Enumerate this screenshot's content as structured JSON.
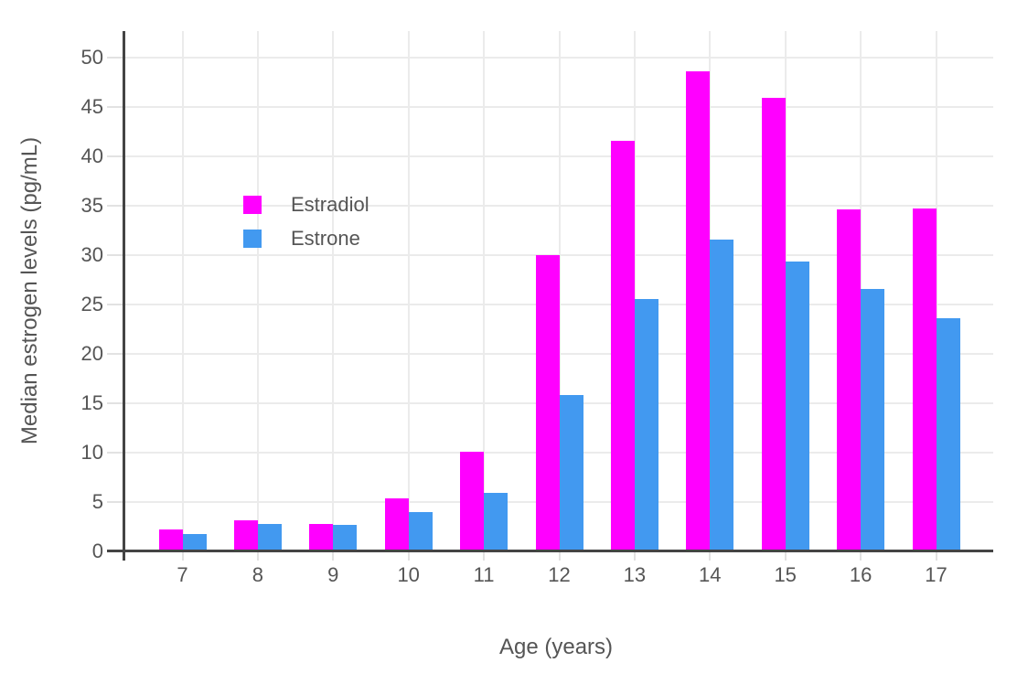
{
  "chart_data": {
    "type": "bar",
    "categories": [
      "7",
      "8",
      "9",
      "10",
      "11",
      "12",
      "13",
      "14",
      "15",
      "16",
      "17"
    ],
    "series": [
      {
        "name": "Estradiol",
        "color": "#ff00ff",
        "values": [
          2.2,
          3.1,
          2.7,
          5.3,
          10.1,
          30.0,
          41.6,
          48.6,
          45.9,
          34.6,
          34.7
        ]
      },
      {
        "name": "Estrone",
        "color": "#4299f0",
        "values": [
          1.7,
          2.7,
          2.6,
          3.9,
          5.9,
          15.8,
          25.5,
          31.6,
          29.3,
          26.6,
          23.6
        ]
      }
    ],
    "title": "",
    "xlabel": "Age (years)",
    "ylabel": "Median estrogen levels (pg/mL)",
    "ylim": [
      0,
      52.5
    ],
    "yticks": [
      0,
      5,
      10,
      15,
      20,
      25,
      30,
      35,
      40,
      45,
      50
    ],
    "grid": true,
    "legend_position": "inside-top-left",
    "background": "#ffffff"
  },
  "colors": {
    "grid": "#ebebeb",
    "tick": "#e2e2e2",
    "axis": "#444444",
    "text": "#555555"
  }
}
